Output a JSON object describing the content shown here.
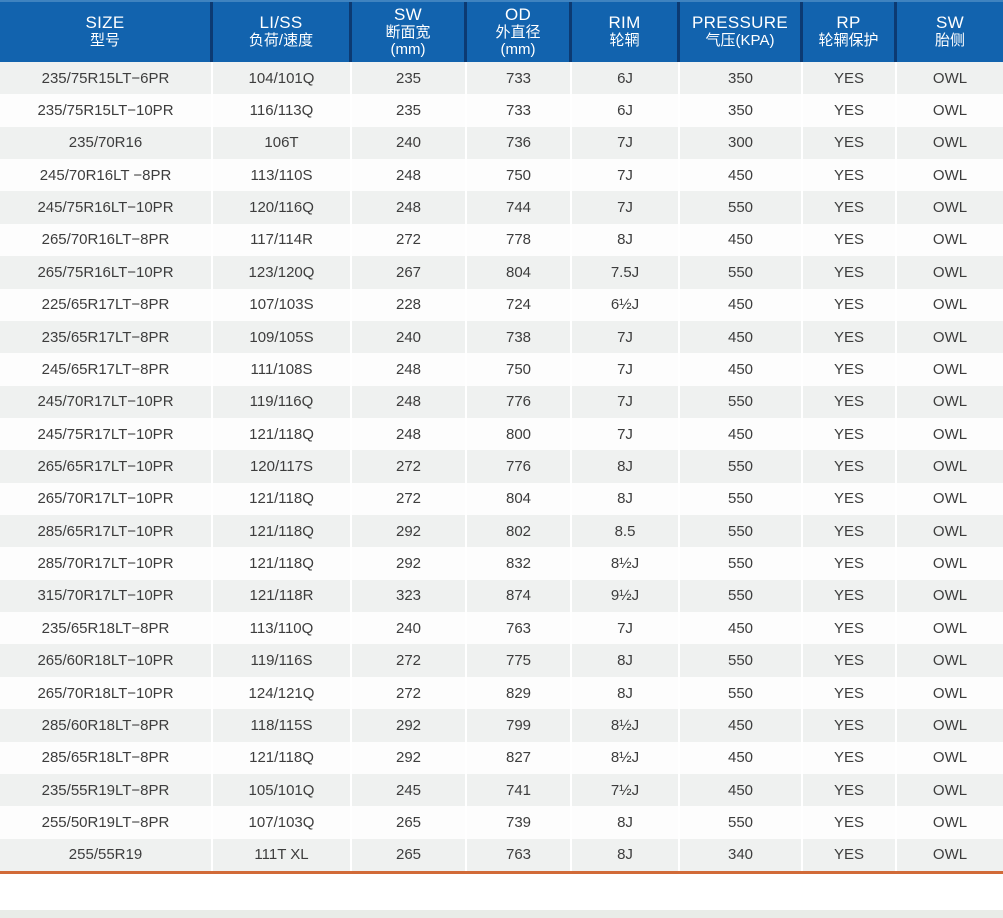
{
  "chart_data": {
    "type": "table",
    "title": "Tire specification table (bilingual English/Chinese headers)",
    "columns": [
      {
        "name": "size",
        "lines": [
          "SIZE",
          "型号"
        ]
      },
      {
        "name": "li-ss",
        "lines": [
          "LI/SS",
          "负荷/速度"
        ]
      },
      {
        "name": "sw-mm",
        "lines": [
          "SW",
          "断面宽",
          "(mm)"
        ]
      },
      {
        "name": "od-mm",
        "lines": [
          "OD",
          "外直径",
          "(mm)"
        ]
      },
      {
        "name": "rim",
        "lines": [
          "RIM",
          "轮辋"
        ]
      },
      {
        "name": "pressure",
        "lines": [
          "PRESSURE",
          "气压(KPA)"
        ]
      },
      {
        "name": "rp",
        "lines": [
          "RP",
          "轮辋保护"
        ]
      },
      {
        "name": "sw-side",
        "lines": [
          "SW",
          "胎侧"
        ]
      }
    ],
    "rows": [
      [
        "235/75R15LT−6PR",
        "104/101Q",
        "235",
        "733",
        "6J",
        "350",
        "YES",
        "OWL"
      ],
      [
        "235/75R15LT−10PR",
        "116/113Q",
        "235",
        "733",
        "6J",
        "350",
        "YES",
        "OWL"
      ],
      [
        "235/70R16",
        "106T",
        "240",
        "736",
        "7J",
        "300",
        "YES",
        "OWL"
      ],
      [
        "245/70R16LT −8PR",
        "113/110S",
        "248",
        "750",
        "7J",
        "450",
        "YES",
        "OWL"
      ],
      [
        "245/75R16LT−10PR",
        "120/116Q",
        "248",
        "744",
        "7J",
        "550",
        "YES",
        "OWL"
      ],
      [
        "265/70R16LT−8PR",
        "117/114R",
        "272",
        "778",
        "8J",
        "450",
        "YES",
        "OWL"
      ],
      [
        "265/75R16LT−10PR",
        "123/120Q",
        "267",
        "804",
        "7.5J",
        "550",
        "YES",
        "OWL"
      ],
      [
        "225/65R17LT−8PR",
        "107/103S",
        "228",
        "724",
        "6½J",
        "450",
        "YES",
        "OWL"
      ],
      [
        "235/65R17LT−8PR",
        "109/105S",
        "240",
        "738",
        "7J",
        "450",
        "YES",
        "OWL"
      ],
      [
        "245/65R17LT−8PR",
        "111/108S",
        "248",
        "750",
        "7J",
        "450",
        "YES",
        "OWL"
      ],
      [
        "245/70R17LT−10PR",
        "119/116Q",
        "248",
        "776",
        "7J",
        "550",
        "YES",
        "OWL"
      ],
      [
        "245/75R17LT−10PR",
        "121/118Q",
        "248",
        "800",
        "7J",
        "450",
        "YES",
        "OWL"
      ],
      [
        "265/65R17LT−10PR",
        "120/117S",
        "272",
        "776",
        "8J",
        "550",
        "YES",
        "OWL"
      ],
      [
        "265/70R17LT−10PR",
        "121/118Q",
        "272",
        "804",
        "8J",
        "550",
        "YES",
        "OWL"
      ],
      [
        "285/65R17LT−10PR",
        "121/118Q",
        "292",
        "802",
        "8.5",
        "550",
        "YES",
        "OWL"
      ],
      [
        "285/70R17LT−10PR",
        "121/118Q",
        "292",
        "832",
        "8½J",
        "550",
        "YES",
        "OWL"
      ],
      [
        "315/70R17LT−10PR",
        "121/118R",
        "323",
        "874",
        "9½J",
        "550",
        "YES",
        "OWL"
      ],
      [
        "235/65R18LT−8PR",
        "113/110Q",
        "240",
        "763",
        "7J",
        "450",
        "YES",
        "OWL"
      ],
      [
        "265/60R18LT−10PR",
        "119/116S",
        "272",
        "775",
        "8J",
        "550",
        "YES",
        "OWL"
      ],
      [
        "265/70R18LT−10PR",
        "124/121Q",
        "272",
        "829",
        "8J",
        "550",
        "YES",
        "OWL"
      ],
      [
        "285/60R18LT−8PR",
        "118/115S",
        "292",
        "799",
        "8½J",
        "450",
        "YES",
        "OWL"
      ],
      [
        "285/65R18LT−8PR",
        "121/118Q",
        "292",
        "827",
        "8½J",
        "450",
        "YES",
        "OWL"
      ],
      [
        "235/55R19LT−8PR",
        "105/101Q",
        "245",
        "741",
        "7½J",
        "450",
        "YES",
        "OWL"
      ],
      [
        "255/50R19LT−8PR",
        "107/103Q",
        "265",
        "739",
        "8J",
        "550",
        "YES",
        "OWL"
      ],
      [
        "255/55R19",
        "111T XL",
        "265",
        "763",
        "8J",
        "340",
        "YES",
        "OWL"
      ]
    ],
    "layout_hints": {
      "striped_rows": true,
      "first_row_shaded": true,
      "header_style": "solid blue band with dark divider lines",
      "bottom_accent": "orange rule under last row"
    }
  },
  "colors": {
    "header_bg": "#1263ae",
    "header_top_edge": "#3f83c0",
    "header_divider": "#0c3a72",
    "header_text": "#ffffff",
    "row_alt": "#eff1f0",
    "row_base": "#fdfdfd",
    "text": "#3d3d3d",
    "accent_orange": "#d16a38",
    "footer_strip": "#e9ece8"
  }
}
